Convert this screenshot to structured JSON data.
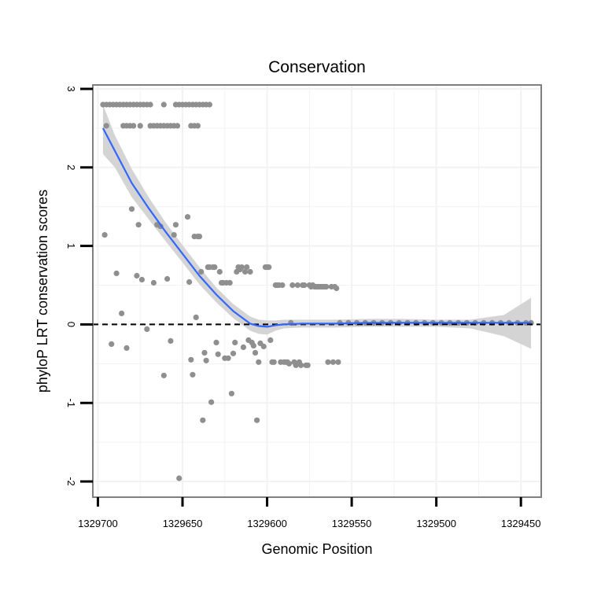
{
  "chart_data": {
    "type": "scatter",
    "title": "Conservation",
    "xlabel": "Genomic Position",
    "ylabel": "phyloP LRT conservation scores",
    "x_reversed": true,
    "xlim": [
      1329703,
      1329438
    ],
    "ylim": [
      -2.2,
      3.05
    ],
    "x_ticks": [
      1329700,
      1329650,
      1329600,
      1329550,
      1329500,
      1329450
    ],
    "x_tick_labels": [
      "1329700",
      "1329650",
      "1329600",
      "1329550",
      "1329500",
      "1329450"
    ],
    "y_ticks": [
      -2,
      -1,
      0,
      1,
      2,
      3
    ],
    "y_tick_labels": [
      "-2",
      "-1",
      "0",
      "1",
      "2",
      "3"
    ],
    "grid": true,
    "reference_line": {
      "y": 0,
      "style": "dashed"
    },
    "colors": {
      "points": "#8f8f8f",
      "smooth": "#3366ff",
      "ribbon": "#d4d4d4",
      "panel_border": "#7f7f7f",
      "grid": "#f2f2f2"
    },
    "series": [
      {
        "name": "scores",
        "kind": "points",
        "points": [
          [
            1329697,
            2.8
          ],
          [
            1329695,
            2.8
          ],
          [
            1329693,
            2.8
          ],
          [
            1329691,
            2.8
          ],
          [
            1329689,
            2.8
          ],
          [
            1329687,
            2.8
          ],
          [
            1329685,
            2.8
          ],
          [
            1329683,
            2.8
          ],
          [
            1329681,
            2.8
          ],
          [
            1329679,
            2.8
          ],
          [
            1329677,
            2.8
          ],
          [
            1329675,
            2.8
          ],
          [
            1329673,
            2.8
          ],
          [
            1329671,
            2.8
          ],
          [
            1329669,
            2.8
          ],
          [
            1329654,
            2.8
          ],
          [
            1329652,
            2.8
          ],
          [
            1329650,
            2.8
          ],
          [
            1329648,
            2.8
          ],
          [
            1329646,
            2.8
          ],
          [
            1329644,
            2.8
          ],
          [
            1329642,
            2.8
          ],
          [
            1329640,
            2.8
          ],
          [
            1329638,
            2.8
          ],
          [
            1329636,
            2.8
          ],
          [
            1329634,
            2.8
          ],
          [
            1329661,
            2.8
          ],
          [
            1329695,
            2.53
          ],
          [
            1329685,
            2.53
          ],
          [
            1329683,
            2.53
          ],
          [
            1329681,
            2.53
          ],
          [
            1329679,
            2.53
          ],
          [
            1329675,
            2.53
          ],
          [
            1329669,
            2.53
          ],
          [
            1329667,
            2.53
          ],
          [
            1329665,
            2.53
          ],
          [
            1329663,
            2.53
          ],
          [
            1329661,
            2.53
          ],
          [
            1329659,
            2.53
          ],
          [
            1329657,
            2.53
          ],
          [
            1329655,
            2.53
          ],
          [
            1329653,
            2.53
          ],
          [
            1329645,
            2.53
          ],
          [
            1329643,
            2.53
          ],
          [
            1329641,
            2.53
          ],
          [
            1329696,
            1.14
          ],
          [
            1329692,
            -0.25
          ],
          [
            1329689,
            0.65
          ],
          [
            1329686,
            0.14
          ],
          [
            1329683,
            -0.3
          ],
          [
            1329680,
            1.47
          ],
          [
            1329677,
            0.62
          ],
          [
            1329676,
            1.27
          ],
          [
            1329674,
            0.57
          ],
          [
            1329671,
            -0.06
          ],
          [
            1329667,
            0.53
          ],
          [
            1329665,
            1.27
          ],
          [
            1329663,
            1.25
          ],
          [
            1329661,
            -0.65
          ],
          [
            1329659,
            0.58
          ],
          [
            1329657,
            -0.21
          ],
          [
            1329655,
            1.14
          ],
          [
            1329654,
            1.27
          ],
          [
            1329652,
            -1.96
          ],
          [
            1329647,
            1.37
          ],
          [
            1329646,
            0.54
          ],
          [
            1329645,
            -0.45
          ],
          [
            1329644,
            -0.64
          ],
          [
            1329643,
            1.12
          ],
          [
            1329642,
            0.09
          ],
          [
            1329641,
            1.12
          ],
          [
            1329640,
            1.12
          ],
          [
            1329639,
            0.67
          ],
          [
            1329638,
            -1.22
          ],
          [
            1329637,
            -0.36
          ],
          [
            1329636,
            -0.46
          ],
          [
            1329635,
            0.73
          ],
          [
            1329634,
            0.73
          ],
          [
            1329633,
            -0.99
          ],
          [
            1329632,
            0.73
          ],
          [
            1329631,
            0.73
          ],
          [
            1329630,
            -0.23
          ],
          [
            1329629,
            -0.38
          ],
          [
            1329628,
            0.67
          ],
          [
            1329627,
            0.53
          ],
          [
            1329626,
            0.53
          ],
          [
            1329625,
            -0.43
          ],
          [
            1329624,
            0.53
          ],
          [
            1329623,
            -0.43
          ],
          [
            1329622,
            0.53
          ],
          [
            1329621,
            -0.88
          ],
          [
            1329620,
            -0.37
          ],
          [
            1329619,
            -0.23
          ],
          [
            1329618,
            0.67
          ],
          [
            1329617,
            0.73
          ],
          [
            1329616,
            0.7
          ],
          [
            1329615,
            0.73
          ],
          [
            1329614,
            -0.29
          ],
          [
            1329613,
            0.67
          ],
          [
            1329612,
            0.73
          ],
          [
            1329611,
            -0.2
          ],
          [
            1329610,
            0.67
          ],
          [
            1329609,
            -0.23
          ],
          [
            1329608,
            -0.27
          ],
          [
            1329607,
            -0.36
          ],
          [
            1329606,
            -1.22
          ],
          [
            1329605,
            -0.48
          ],
          [
            1329604,
            -0.24
          ],
          [
            1329602,
            -0.28
          ],
          [
            1329601,
            0.73
          ],
          [
            1329600,
            0.73
          ],
          [
            1329599,
            0.73
          ],
          [
            1329598,
            -0.2
          ],
          [
            1329597,
            -0.48
          ],
          [
            1329596,
            -0.48
          ],
          [
            1329595,
            0.5
          ],
          [
            1329594,
            0.5
          ],
          [
            1329593,
            0.5
          ],
          [
            1329592,
            -0.48
          ],
          [
            1329591,
            0.5
          ],
          [
            1329590,
            -0.48
          ],
          [
            1329589,
            -0.48
          ],
          [
            1329588,
            -0.48
          ],
          [
            1329587,
            -0.5
          ],
          [
            1329586,
            0.02
          ],
          [
            1329585,
            0.5
          ],
          [
            1329584,
            -0.48
          ],
          [
            1329583,
            -0.52
          ],
          [
            1329582,
            0.5
          ],
          [
            1329581,
            -0.48
          ],
          [
            1329580,
            -0.52
          ],
          [
            1329579,
            0.5
          ],
          [
            1329578,
            0.5
          ],
          [
            1329577,
            -0.52
          ],
          [
            1329576,
            -0.52
          ],
          [
            1329575,
            0.5
          ],
          [
            1329574,
            0.48
          ],
          [
            1329573,
            0.5
          ],
          [
            1329572,
            0.48
          ],
          [
            1329571,
            0.48
          ],
          [
            1329570,
            0.48
          ],
          [
            1329569,
            0.48
          ],
          [
            1329568,
            0.48
          ],
          [
            1329567,
            0.48
          ],
          [
            1329566,
            0.48
          ],
          [
            1329565,
            0.48
          ],
          [
            1329564,
            -0.48
          ],
          [
            1329562,
            0.48
          ],
          [
            1329561,
            -0.48
          ],
          [
            1329560,
            0.48
          ],
          [
            1329559,
            0.46
          ],
          [
            1329558,
            -0.48
          ],
          [
            1329557,
            0.02
          ],
          [
            1329552,
            0.02
          ],
          [
            1329547,
            0.02
          ],
          [
            1329542,
            0.02
          ],
          [
            1329537,
            0.02
          ],
          [
            1329532,
            0.02
          ],
          [
            1329527,
            0.02
          ],
          [
            1329522,
            0.02
          ],
          [
            1329517,
            0.02
          ],
          [
            1329512,
            0.02
          ],
          [
            1329507,
            0.02
          ],
          [
            1329502,
            0.02
          ],
          [
            1329497,
            0.02
          ],
          [
            1329492,
            0.02
          ],
          [
            1329487,
            0.02
          ],
          [
            1329482,
            0.02
          ],
          [
            1329477,
            0.02
          ],
          [
            1329472,
            0.02
          ],
          [
            1329467,
            0.02
          ],
          [
            1329462,
            0.02
          ],
          [
            1329457,
            0.02
          ],
          [
            1329452,
            0.02
          ],
          [
            1329447,
            0.02
          ],
          [
            1329444,
            0.02
          ]
        ]
      },
      {
        "name": "loess fit",
        "kind": "smooth",
        "points": [
          [
            1329697,
            2.5
          ],
          [
            1329690,
            2.21
          ],
          [
            1329680,
            1.8
          ],
          [
            1329670,
            1.48
          ],
          [
            1329660,
            1.18
          ],
          [
            1329650,
            0.9
          ],
          [
            1329640,
            0.62
          ],
          [
            1329630,
            0.38
          ],
          [
            1329620,
            0.17
          ],
          [
            1329610,
            0.01
          ],
          [
            1329605,
            -0.02
          ],
          [
            1329600,
            -0.03
          ],
          [
            1329595,
            -0.01
          ],
          [
            1329590,
            0.0
          ],
          [
            1329580,
            0.01
          ],
          [
            1329570,
            0.01
          ],
          [
            1329560,
            0.01
          ],
          [
            1329540,
            0.02
          ],
          [
            1329520,
            0.02
          ],
          [
            1329500,
            0.02
          ],
          [
            1329480,
            0.02
          ],
          [
            1329460,
            0.02
          ],
          [
            1329444,
            0.02
          ]
        ],
        "upper": [
          [
            1329697,
            2.8
          ],
          [
            1329690,
            2.41
          ],
          [
            1329680,
            1.98
          ],
          [
            1329670,
            1.62
          ],
          [
            1329660,
            1.3
          ],
          [
            1329650,
            1.01
          ],
          [
            1329640,
            0.73
          ],
          [
            1329630,
            0.47
          ],
          [
            1329620,
            0.26
          ],
          [
            1329610,
            0.1
          ],
          [
            1329605,
            0.06
          ],
          [
            1329600,
            0.05
          ],
          [
            1329595,
            0.05
          ],
          [
            1329590,
            0.06
          ],
          [
            1329580,
            0.06
          ],
          [
            1329570,
            0.06
          ],
          [
            1329560,
            0.06
          ],
          [
            1329540,
            0.07
          ],
          [
            1329520,
            0.07
          ],
          [
            1329500,
            0.06
          ],
          [
            1329480,
            0.06
          ],
          [
            1329460,
            0.12
          ],
          [
            1329444,
            0.34
          ]
        ],
        "lower": [
          [
            1329697,
            2.17
          ],
          [
            1329690,
            2.0
          ],
          [
            1329680,
            1.62
          ],
          [
            1329670,
            1.34
          ],
          [
            1329660,
            1.06
          ],
          [
            1329650,
            0.79
          ],
          [
            1329640,
            0.51
          ],
          [
            1329630,
            0.28
          ],
          [
            1329620,
            0.08
          ],
          [
            1329610,
            -0.08
          ],
          [
            1329605,
            -0.12
          ],
          [
            1329600,
            -0.13
          ],
          [
            1329595,
            -0.08
          ],
          [
            1329590,
            -0.05
          ],
          [
            1329580,
            -0.04
          ],
          [
            1329570,
            -0.04
          ],
          [
            1329560,
            -0.04
          ],
          [
            1329540,
            -0.03
          ],
          [
            1329520,
            -0.03
          ],
          [
            1329500,
            -0.03
          ],
          [
            1329480,
            -0.05
          ],
          [
            1329460,
            -0.15
          ],
          [
            1329444,
            -0.31
          ]
        ]
      }
    ]
  }
}
